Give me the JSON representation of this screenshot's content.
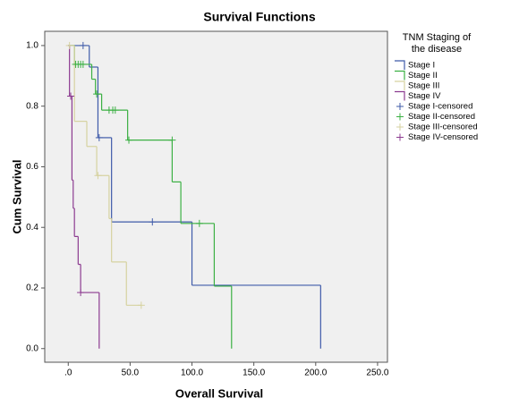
{
  "chart_data": {
    "type": "km",
    "title": "Survival Functions",
    "x_label": "Overall Survival",
    "y_label": "Cum Survival",
    "legend_title": [
      "TNM Staging of",
      "the disease"
    ],
    "xlim": [
      -19,
      258
    ],
    "ylim": [
      -0.045,
      1.047
    ],
    "xticks": [
      {
        "value": 0,
        "label": ".0"
      },
      {
        "value": 50,
        "label": "50.0"
      },
      {
        "value": 100,
        "label": "100.0"
      },
      {
        "value": 150,
        "label": "150.0"
      },
      {
        "value": 200,
        "label": "200.0"
      },
      {
        "value": 250,
        "label": "250.0"
      }
    ],
    "yticks": [
      {
        "value": 0,
        "label": "0.0"
      },
      {
        "value": 0.2,
        "label": "0.2"
      },
      {
        "value": 0.4,
        "label": "0.4"
      },
      {
        "value": 0.6,
        "label": "0.6"
      },
      {
        "value": 0.8,
        "label": "0.8"
      },
      {
        "value": 1,
        "label": "1.0"
      }
    ],
    "series": [
      {
        "name": "Stage I",
        "color": "#3f5ba9",
        "marker": "step",
        "x": [
          0,
          17,
          24,
          35,
          100,
          204
        ],
        "values": [
          1,
          0.929,
          0.696,
          0.418,
          0.209,
          0
        ]
      },
      {
        "name": "Stage II",
        "color": "#3bb043",
        "marker": "step",
        "x": [
          0,
          5,
          19,
          22,
          27,
          48,
          84,
          91,
          118,
          132
        ],
        "values": [
          1,
          0.938,
          0.889,
          0.84,
          0.787,
          0.688,
          0.55,
          0.413,
          0.206,
          0
        ]
      },
      {
        "name": "Stage III",
        "color": "#d6d2a0",
        "marker": "step",
        "x": [
          0,
          5,
          15,
          23,
          33,
          35,
          47
        ],
        "values": [
          1,
          0.75,
          0.667,
          0.571,
          0.429,
          0.286,
          0.143
        ]
      },
      {
        "name": "Stage IV",
        "color": "#8c3b90",
        "marker": "step",
        "x": [
          0,
          1,
          3,
          4,
          5,
          8,
          10,
          25
        ],
        "values": [
          1,
          0.833,
          0.556,
          0.463,
          0.37,
          0.278,
          0.185,
          0
        ]
      },
      {
        "name": "Stage I-censored",
        "color": "#3f5ba9",
        "marker": "plus",
        "x": [
          12,
          25,
          68
        ],
        "values": [
          1,
          0.696,
          0.418
        ]
      },
      {
        "name": "Stage II-censored",
        "color": "#3bb043",
        "marker": "plus",
        "x": [
          6,
          8,
          10,
          12,
          23,
          33,
          36,
          38,
          49,
          84,
          106
        ],
        "values": [
          0.938,
          0.938,
          0.938,
          0.938,
          0.84,
          0.787,
          0.787,
          0.787,
          0.688,
          0.688,
          0.413
        ]
      },
      {
        "name": "Stage III-censored",
        "color": "#d6d2a0",
        "marker": "plus",
        "x": [
          1,
          24,
          59
        ],
        "values": [
          1,
          0.571,
          0.143
        ]
      },
      {
        "name": "Stage IV-censored",
        "color": "#8c3b90",
        "marker": "plus",
        "x": [
          2,
          10
        ],
        "values": [
          0.833,
          0.185
        ]
      }
    ]
  }
}
